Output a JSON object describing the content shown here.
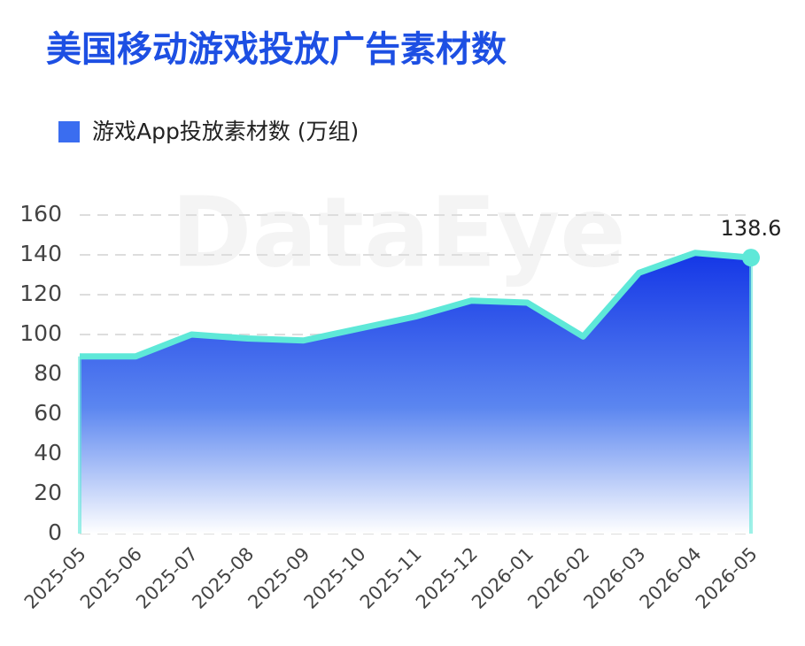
{
  "chart_data": {
    "type": "area",
    "title": "美国移动游戏投放广告素材数",
    "watermark": "DataEye",
    "categories": [
      "2025-05",
      "2025-06",
      "2025-07",
      "2025-08",
      "2025-09",
      "2025-10",
      "2025-11",
      "2025-12",
      "2026-01",
      "2026-02",
      "2026-03",
      "2026-04",
      "2026-05"
    ],
    "series": [
      {
        "name": "游戏App投放素材数 (万组)",
        "color": "#5ee8d8",
        "legend_color": "#3a6df0",
        "values": [
          89,
          89,
          100,
          98,
          97,
          103,
          109,
          117,
          116,
          99,
          131,
          141,
          138.6
        ]
      }
    ],
    "ylim": [
      0,
      160
    ],
    "yticks": [
      0,
      20,
      40,
      60,
      80,
      100,
      120,
      140,
      160
    ],
    "grid": true
  }
}
